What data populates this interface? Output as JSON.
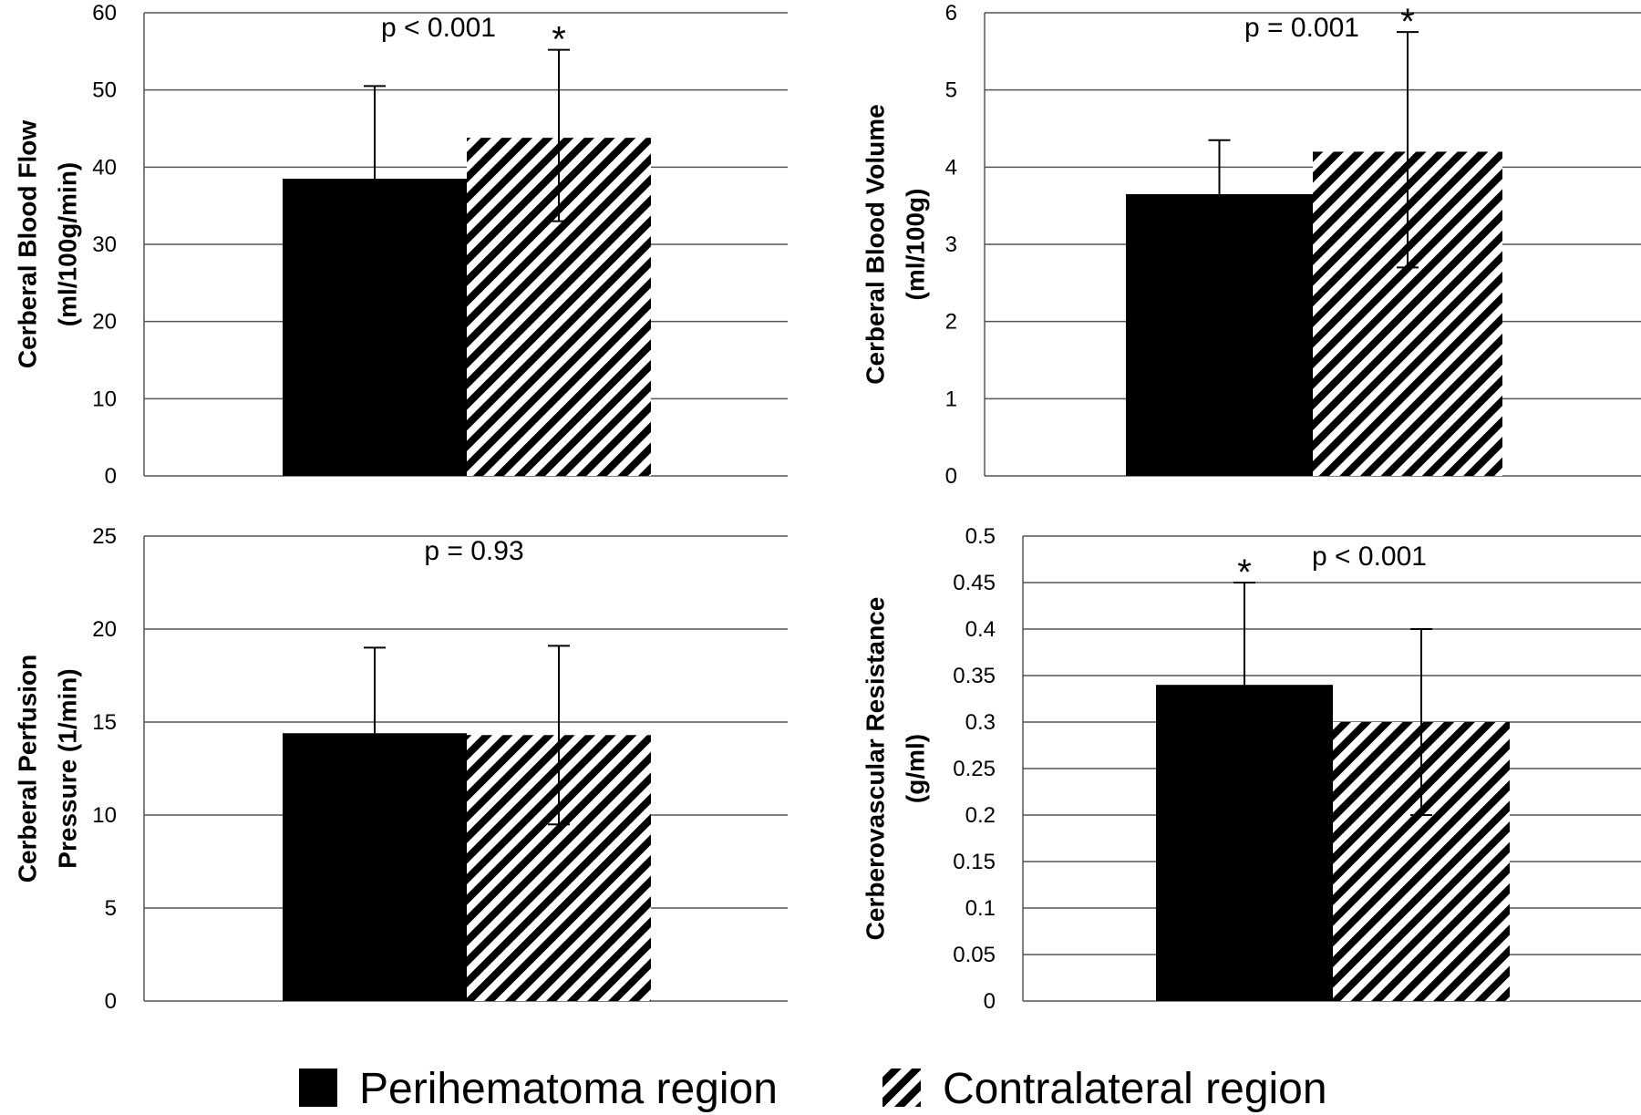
{
  "legend": {
    "items": [
      {
        "label": "Perihematoma region",
        "fill": "solid",
        "color": "#000000"
      },
      {
        "label": "Contralateral region",
        "fill": "diagonal-stripes",
        "color": "#000000"
      }
    ],
    "placement": "bottom"
  },
  "chart_data": [
    {
      "type": "bar",
      "ylabel": [
        "Cerberal Blood Flow",
        "(ml/100g/min)"
      ],
      "ylim": [
        0,
        60
      ],
      "yticks": [
        0,
        10,
        20,
        30,
        40,
        50,
        60
      ],
      "grid": true,
      "annotation": "p < 0.001",
      "series": [
        {
          "name": "Perihematoma region",
          "value": 38.5,
          "error_high": 50.5,
          "star": false
        },
        {
          "name": "Contralateral region",
          "value": 43.8,
          "error_high": 55.2,
          "error_low": 33.0,
          "star": true
        }
      ]
    },
    {
      "type": "bar",
      "ylabel": [
        "Cerberal Blood Volume",
        "(ml/100g)"
      ],
      "ylim": [
        0,
        6
      ],
      "yticks": [
        0,
        1,
        2,
        3,
        4,
        5,
        6
      ],
      "grid": true,
      "annotation": "p = 0.001",
      "series": [
        {
          "name": "Perihematoma region",
          "value": 3.65,
          "error_high": 4.35,
          "star": false
        },
        {
          "name": "Contralateral region",
          "value": 4.2,
          "error_high": 5.75,
          "error_low": 2.7,
          "star": true
        }
      ]
    },
    {
      "type": "bar",
      "ylabel": [
        "Cerberal Perfusion",
        "Pressure (1/min)"
      ],
      "ylim": [
        0,
        25
      ],
      "yticks": [
        0,
        5,
        10,
        15,
        20,
        25
      ],
      "grid": true,
      "annotation": "p = 0.93",
      "series": [
        {
          "name": "Perihematoma region",
          "value": 14.4,
          "error_high": 19.0,
          "star": false
        },
        {
          "name": "Contralateral region",
          "value": 14.3,
          "error_high": 19.1,
          "error_low": 9.5,
          "star": false
        }
      ]
    },
    {
      "type": "bar",
      "ylabel": [
        "Cerberovascular Resistance",
        "(g/ml)"
      ],
      "ylim": [
        0,
        0.5
      ],
      "yticks": [
        "0",
        "0.05",
        "0.1",
        "0.15",
        "0.2",
        "0.25",
        "0.3",
        "0.35",
        "0.4",
        "0.45",
        "0.5"
      ],
      "grid": true,
      "annotation": "p < 0.001",
      "series": [
        {
          "name": "Perihematoma region",
          "value": 0.34,
          "error_high": 0.45,
          "star": true
        },
        {
          "name": "Contralateral region",
          "value": 0.3,
          "error_high": 0.4,
          "error_low": 0.2,
          "star": false
        }
      ]
    }
  ]
}
